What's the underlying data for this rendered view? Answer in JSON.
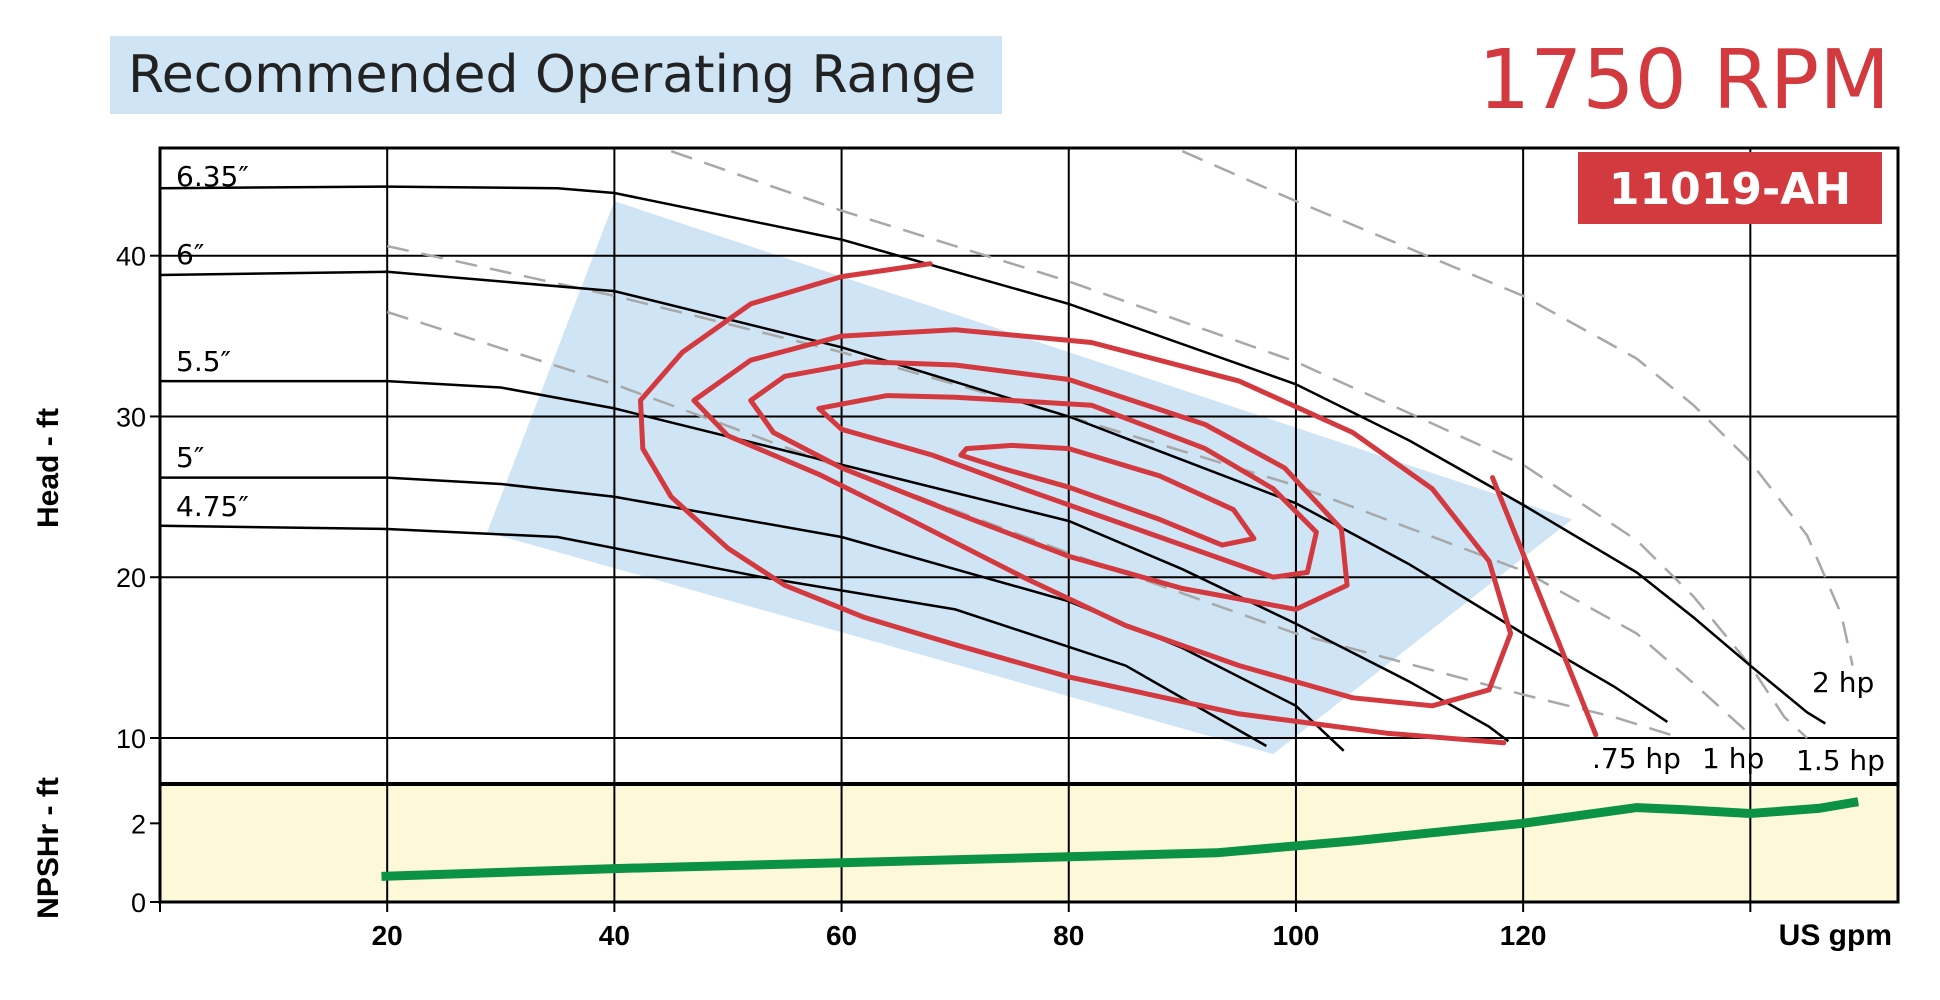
{
  "chart_data": {
    "type": "line",
    "title": "Recommended Operating Range",
    "speed_label": "1750 RPM",
    "model_label": "11019-AH",
    "xlabel": "US gpm",
    "ylabel": "Head - ft",
    "npsh_label": "NPSHr - ft",
    "xlim": [
      0,
      153
    ],
    "ylim": [
      7.2,
      46.7
    ],
    "npsh_ylim": [
      0,
      3
    ],
    "grid": true,
    "x_ticks": [
      20,
      40,
      60,
      80,
      100,
      120
    ],
    "x_tick_labels": [
      "20",
      "40",
      "60",
      "80",
      "100",
      "120"
    ],
    "y_ticks": [
      10,
      20,
      30,
      40
    ],
    "y_tick_labels": [
      "10",
      "20",
      "30",
      "40"
    ],
    "npsh_ticks": [
      0,
      2
    ],
    "npsh_tick_labels": [
      "0",
      "2"
    ],
    "colors": {
      "curve": "#000000",
      "efficiency": "#d33a3f",
      "range_fill": "#cfe4f4",
      "hp_line": "#a8a8a8",
      "npsh_fill": "#fdf9d8",
      "npsh_line": "#0b9243",
      "title_fill": "#cfe4f4",
      "model_fill": "#d33a3f"
    },
    "range_polygon": [
      [
        40,
        43.4
      ],
      [
        124.3,
        23.6
      ],
      [
        98,
        9.0
      ],
      [
        28.8,
        22.8
      ]
    ],
    "impeller_curves": [
      {
        "label": "6.35″",
        "points": [
          [
            0,
            44.2
          ],
          [
            20,
            44.3
          ],
          [
            35,
            44.2
          ],
          [
            40,
            43.9
          ],
          [
            60,
            41
          ],
          [
            80,
            37
          ],
          [
            100,
            32
          ],
          [
            110,
            28.5
          ],
          [
            120,
            24.5
          ],
          [
            130,
            20.3
          ],
          [
            135,
            17.5
          ],
          [
            140,
            14.5
          ],
          [
            145,
            11.6
          ],
          [
            146.6,
            10.9
          ]
        ]
      },
      {
        "label": "6″",
        "points": [
          [
            0,
            38.8
          ],
          [
            20,
            39.0
          ],
          [
            40,
            37.8
          ],
          [
            60,
            34.3
          ],
          [
            80,
            30
          ],
          [
            100,
            24.6
          ],
          [
            110,
            20.8
          ],
          [
            120,
            16.5
          ],
          [
            128,
            13.2
          ],
          [
            132.7,
            11.0
          ]
        ]
      },
      {
        "label": "5.5″",
        "points": [
          [
            0,
            32.2
          ],
          [
            20,
            32.2
          ],
          [
            30,
            31.8
          ],
          [
            40,
            30.5
          ],
          [
            60,
            27
          ],
          [
            80,
            23.5
          ],
          [
            90,
            20.5
          ],
          [
            100,
            17.1
          ],
          [
            110,
            13.5
          ],
          [
            117,
            10.7
          ],
          [
            118.7,
            9.8
          ]
        ]
      },
      {
        "label": "5″",
        "points": [
          [
            0,
            26.2
          ],
          [
            20,
            26.2
          ],
          [
            30,
            25.8
          ],
          [
            40,
            25
          ],
          [
            60,
            22.5
          ],
          [
            80,
            18.5
          ],
          [
            90,
            15.6
          ],
          [
            100,
            12
          ],
          [
            104.2,
            9.2
          ]
        ]
      },
      {
        "label": "4.75″",
        "points": [
          [
            0,
            23.2
          ],
          [
            20,
            23.0
          ],
          [
            35,
            22.5
          ],
          [
            53,
            20
          ],
          [
            70,
            18
          ],
          [
            85,
            14.5
          ],
          [
            97.4,
            9.5
          ]
        ]
      }
    ],
    "efficiency_curves": [
      {
        "points": [
          [
            67.8,
            39.5
          ],
          [
            60,
            38.7
          ],
          [
            52,
            37
          ],
          [
            46,
            34
          ],
          [
            42.3,
            31
          ],
          [
            42.5,
            28
          ],
          [
            45,
            25
          ],
          [
            50,
            21.8
          ],
          [
            55,
            19.5
          ],
          [
            62,
            17.5
          ],
          [
            70,
            15.8
          ],
          [
            80,
            13.8
          ],
          [
            95,
            11.5
          ],
          [
            108,
            10.3
          ],
          [
            118.3,
            9.7
          ]
        ]
      },
      {
        "points": [
          [
            70,
            35.4
          ],
          [
            60,
            35
          ],
          [
            52,
            33.5
          ],
          [
            47,
            31
          ],
          [
            50,
            28.8
          ],
          [
            58,
            26.4
          ],
          [
            66,
            23.6
          ],
          [
            76,
            20
          ],
          [
            85,
            17
          ],
          [
            95,
            14.5
          ],
          [
            105,
            12.5
          ],
          [
            112,
            12
          ],
          [
            117,
            13
          ],
          [
            118.9,
            16.5
          ],
          [
            117,
            21
          ],
          [
            112,
            25.5
          ],
          [
            105,
            29
          ],
          [
            95,
            32.2
          ],
          [
            82,
            34.6
          ],
          [
            70,
            35.4
          ]
        ]
      },
      {
        "points": [
          [
            70,
            33.2
          ],
          [
            62,
            33.4
          ],
          [
            55,
            32.5
          ],
          [
            52,
            31
          ],
          [
            54,
            29
          ],
          [
            60,
            26.8
          ],
          [
            70,
            24
          ],
          [
            80,
            21.3
          ],
          [
            90,
            19.3
          ],
          [
            100,
            18
          ],
          [
            104.5,
            19.5
          ],
          [
            104,
            23
          ],
          [
            99,
            26.8
          ],
          [
            92,
            29.5
          ],
          [
            80,
            32.3
          ],
          [
            70,
            33.2
          ]
        ]
      },
      {
        "points": [
          [
            70,
            31.2
          ],
          [
            64,
            31.3
          ],
          [
            58,
            30.5
          ],
          [
            60,
            29.2
          ],
          [
            68,
            27.6
          ],
          [
            76,
            25.5
          ],
          [
            84,
            23.5
          ],
          [
            92,
            21.5
          ],
          [
            98,
            20
          ],
          [
            101,
            20.3
          ],
          [
            101.8,
            22.8
          ],
          [
            98,
            25.5
          ],
          [
            92,
            28
          ],
          [
            82,
            30.7
          ],
          [
            70,
            31.2
          ]
        ]
      },
      {
        "points": [
          [
            75,
            28.2
          ],
          [
            71,
            28.0
          ],
          [
            70.5,
            27.6
          ],
          [
            74,
            26.8
          ],
          [
            80,
            25.6
          ],
          [
            88,
            23.6
          ],
          [
            93.5,
            22
          ],
          [
            96.3,
            22.4
          ],
          [
            94.5,
            24.2
          ],
          [
            88,
            26.3
          ],
          [
            80,
            28
          ],
          [
            75,
            28.2
          ]
        ]
      }
    ],
    "max_flow_line": {
      "points": [
        [
          117.3,
          26.2
        ],
        [
          126.4,
          10.2
        ]
      ]
    },
    "hp_curves": [
      {
        "label": ".75 hp",
        "points": [
          [
            20,
            36.5
          ],
          [
            40,
            32
          ],
          [
            60,
            26.8
          ],
          [
            80,
            21.5
          ],
          [
            100,
            16.5
          ],
          [
            120,
            12.7
          ],
          [
            128,
            11.3
          ],
          [
            133,
            10.2
          ]
        ]
      },
      {
        "label": "1 hp",
        "points": [
          [
            20,
            40.6
          ],
          [
            40,
            37.5
          ],
          [
            60,
            34
          ],
          [
            80,
            30
          ],
          [
            100,
            25.7
          ],
          [
            120,
            20.4
          ],
          [
            130,
            16.5
          ],
          [
            135,
            13.4
          ],
          [
            140,
            10.2
          ]
        ]
      },
      {
        "label": "1.5 hp",
        "points": [
          [
            45,
            46.5
          ],
          [
            60,
            42.8
          ],
          [
            80,
            38.4
          ],
          [
            100,
            33.4
          ],
          [
            120,
            27
          ],
          [
            130,
            22.3
          ],
          [
            135,
            18.8
          ],
          [
            140,
            14.5
          ],
          [
            143,
            11.3
          ],
          [
            145,
            10
          ]
        ]
      },
      {
        "label": "2 hp",
        "points": [
          [
            90,
            46.5
          ],
          [
            100,
            43.4
          ],
          [
            120,
            37.5
          ],
          [
            130,
            33.6
          ],
          [
            135,
            30.7
          ],
          [
            140,
            27.2
          ],
          [
            145,
            22.6
          ],
          [
            148,
            17.7
          ],
          [
            149,
            14.5
          ]
        ]
      }
    ],
    "npsh_curve": {
      "points": [
        [
          19.5,
          0.65
        ],
        [
          40,
          0.85
        ],
        [
          60,
          1.0
        ],
        [
          80,
          1.15
        ],
        [
          93,
          1.25
        ],
        [
          105,
          1.55
        ],
        [
          120,
          2.0
        ],
        [
          130,
          2.4
        ],
        [
          134,
          2.35
        ],
        [
          140,
          2.25
        ],
        [
          146,
          2.38
        ],
        [
          149.5,
          2.55
        ]
      ]
    }
  }
}
